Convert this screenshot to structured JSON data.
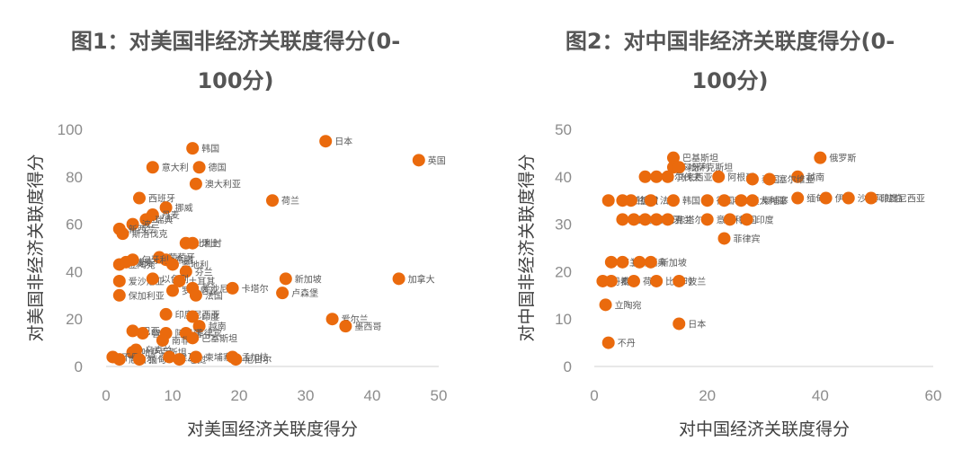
{
  "chart_data": [
    {
      "type": "scatter",
      "title": "图1：对美国非经济关联度得分(0-100分)",
      "title_lines": [
        "图1：对美国非经济关联度得分(0-",
        "100分)"
      ],
      "xlabel": "对美国经济关联度得分",
      "ylabel": "对美国非经济关联度得分",
      "xlim": [
        0,
        50
      ],
      "ylim": [
        0,
        100
      ],
      "xticks": [
        0,
        10,
        20,
        30,
        40,
        50
      ],
      "yticks": [
        0,
        20,
        40,
        60,
        80,
        100
      ],
      "grid": false,
      "color": "#ea6a0d",
      "points": [
        {
          "x": 33,
          "y": 95,
          "label": "日本"
        },
        {
          "x": 47,
          "y": 87,
          "label": "英国"
        },
        {
          "x": 13,
          "y": 92,
          "label": "韩国"
        },
        {
          "x": 7,
          "y": 84,
          "label": "意大利"
        },
        {
          "x": 14,
          "y": 84,
          "label": "德国"
        },
        {
          "x": 13.5,
          "y": 77,
          "label": "澳大利亚"
        },
        {
          "x": 25,
          "y": 70,
          "label": "荷兰"
        },
        {
          "x": 5,
          "y": 71,
          "label": "西班牙"
        },
        {
          "x": 9,
          "y": 67,
          "label": "挪威"
        },
        {
          "x": 7,
          "y": 64,
          "label": "丹麦"
        },
        {
          "x": 6,
          "y": 62,
          "label": "瑞典"
        },
        {
          "x": 4,
          "y": 60,
          "label": "波兰"
        },
        {
          "x": 2,
          "y": 58,
          "label": "新西兰"
        },
        {
          "x": 2.5,
          "y": 56,
          "label": "斯洛伐克"
        },
        {
          "x": 12,
          "y": 52,
          "label": "比利时"
        },
        {
          "x": 13,
          "y": 52,
          "label": "瑞士"
        },
        {
          "x": 8,
          "y": 46,
          "label": "葡萄牙"
        },
        {
          "x": 9,
          "y": 45,
          "label": "希腊"
        },
        {
          "x": 2,
          "y": 43,
          "label": "立陶宛"
        },
        {
          "x": 3,
          "y": 44,
          "label": "捷克"
        },
        {
          "x": 4,
          "y": 45,
          "label": "匈牙利"
        },
        {
          "x": 10,
          "y": 43,
          "label": "奥地利"
        },
        {
          "x": 12,
          "y": 40,
          "label": "芬兰"
        },
        {
          "x": 2,
          "y": 36,
          "label": "爱沙尼亚"
        },
        {
          "x": 7,
          "y": 37,
          "label": "以色列"
        },
        {
          "x": 11,
          "y": 36,
          "label": "土耳其"
        },
        {
          "x": 2,
          "y": 30,
          "label": "保加利亚"
        },
        {
          "x": 10,
          "y": 32,
          "label": "罗马尼亚"
        },
        {
          "x": 13,
          "y": 33,
          "label": "爱沙尼亚"
        },
        {
          "x": 19,
          "y": 33,
          "label": "卡塔尔"
        },
        {
          "x": 13.5,
          "y": 30,
          "label": "法国"
        },
        {
          "x": 27,
          "y": 37,
          "label": "新加坡"
        },
        {
          "x": 44,
          "y": 37,
          "label": "加拿大"
        },
        {
          "x": 26.5,
          "y": 31,
          "label": "卢森堡"
        },
        {
          "x": 9,
          "y": 22,
          "label": "印度尼西亚"
        },
        {
          "x": 13,
          "y": 21,
          "label": "印度"
        },
        {
          "x": 14,
          "y": 17,
          "label": "越南"
        },
        {
          "x": 34,
          "y": 20,
          "label": "爱尔兰"
        },
        {
          "x": 36,
          "y": 17,
          "label": "墨西哥"
        },
        {
          "x": 4,
          "y": 15,
          "label": "巴西"
        },
        {
          "x": 5.5,
          "y": 14,
          "label": "智利"
        },
        {
          "x": 9,
          "y": 14,
          "label": "阿根廷"
        },
        {
          "x": 12,
          "y": 14,
          "label": "菲律宾"
        },
        {
          "x": 8.5,
          "y": 11,
          "label": "南非"
        },
        {
          "x": 13,
          "y": 12,
          "label": "巴基斯坦"
        },
        {
          "x": 4,
          "y": 6,
          "label": "哈萨克斯坦"
        },
        {
          "x": 4.5,
          "y": 7,
          "label": "乌克兰"
        },
        {
          "x": 1,
          "y": 4,
          "label": "不丹"
        },
        {
          "x": 2,
          "y": 3,
          "label": "尼泊尔"
        },
        {
          "x": 5,
          "y": 3,
          "label": "缅甸"
        },
        {
          "x": 9.5,
          "y": 4,
          "label": "埃及"
        },
        {
          "x": 11,
          "y": 3,
          "label": "老挝"
        },
        {
          "x": 13.5,
          "y": 4,
          "label": "柬埔寨"
        },
        {
          "x": 19,
          "y": 4,
          "label": "孟加拉"
        },
        {
          "x": 19.5,
          "y": 3,
          "label": "尼日尔"
        }
      ]
    },
    {
      "type": "scatter",
      "title": "图2：对中国非经济关联度得分(0-100分)",
      "title_lines": [
        "图2：对中国非经济关联度得分(0-",
        "100分)"
      ],
      "xlabel": "对中国经济关联度得分",
      "ylabel": "对中国非经济关联度得分",
      "xlim": [
        0,
        60
      ],
      "ylim": [
        0,
        50
      ],
      "xticks": [
        0,
        20,
        40,
        60
      ],
      "yticks": [
        0,
        10,
        20,
        30,
        40,
        50
      ],
      "grid": false,
      "color": "#ea6a0d",
      "points": [
        {
          "x": 40,
          "y": 44,
          "label": "俄罗斯"
        },
        {
          "x": 14,
          "y": 44,
          "label": "巴基斯坦"
        },
        {
          "x": 14,
          "y": 42,
          "label": "匈牙利"
        },
        {
          "x": 15,
          "y": 42,
          "label": "哈萨克斯坦"
        },
        {
          "x": 36,
          "y": 40,
          "label": "越南"
        },
        {
          "x": 9,
          "y": 40,
          "label": "泰国"
        },
        {
          "x": 11,
          "y": 40,
          "label": "马尔代夫"
        },
        {
          "x": 13,
          "y": 40,
          "label": "马来西亚"
        },
        {
          "x": 22,
          "y": 40,
          "label": "阿根廷"
        },
        {
          "x": 28,
          "y": 39.5,
          "label": "泰国"
        },
        {
          "x": 31,
          "y": 39.5,
          "label": "塞尔维亚"
        },
        {
          "x": 2.5,
          "y": 35,
          "label": "新西兰"
        },
        {
          "x": 5,
          "y": 35,
          "label": "新加坡"
        },
        {
          "x": 6.5,
          "y": 35,
          "label": "德国"
        },
        {
          "x": 10,
          "y": 35,
          "label": "法国"
        },
        {
          "x": 14,
          "y": 35,
          "label": "韩国"
        },
        {
          "x": 20,
          "y": 35,
          "label": "德国"
        },
        {
          "x": 23,
          "y": 35,
          "label": "老挝"
        },
        {
          "x": 26,
          "y": 35,
          "label": "澳大利亚"
        },
        {
          "x": 28,
          "y": 35,
          "label": "柬埔寨"
        },
        {
          "x": 36,
          "y": 35.5,
          "label": "缅甸"
        },
        {
          "x": 41,
          "y": 35.5,
          "label": "伊朗"
        },
        {
          "x": 45,
          "y": 35.5,
          "label": "沙特阿拉伯"
        },
        {
          "x": 49,
          "y": 35.5,
          "label": "印度尼西亚"
        },
        {
          "x": 5,
          "y": 31,
          "label": "瑞士"
        },
        {
          "x": 7,
          "y": 31,
          "label": "英国"
        },
        {
          "x": 9,
          "y": 31,
          "label": "西班牙"
        },
        {
          "x": 11,
          "y": 31,
          "label": "乌克兰"
        },
        {
          "x": 13,
          "y": 31,
          "label": "卡塔尔"
        },
        {
          "x": 20,
          "y": 31,
          "label": "意大利"
        },
        {
          "x": 24,
          "y": 31,
          "label": "韩国"
        },
        {
          "x": 27,
          "y": 31,
          "label": "印度"
        },
        {
          "x": 23,
          "y": 27,
          "label": "菲律宾"
        },
        {
          "x": 3,
          "y": 22,
          "label": "芬兰"
        },
        {
          "x": 5,
          "y": 22,
          "label": "挪威"
        },
        {
          "x": 8,
          "y": 22,
          "label": "瑞典"
        },
        {
          "x": 10,
          "y": 22,
          "label": "新加坡"
        },
        {
          "x": 1.5,
          "y": 18,
          "label": "丹麦"
        },
        {
          "x": 3,
          "y": 18,
          "label": "希腊"
        },
        {
          "x": 7,
          "y": 18,
          "label": "荷兰"
        },
        {
          "x": 11,
          "y": 18,
          "label": "比利时"
        },
        {
          "x": 15,
          "y": 18,
          "label": "波兰"
        },
        {
          "x": 2,
          "y": 13,
          "label": "立陶宛"
        },
        {
          "x": 15,
          "y": 9,
          "label": "日本"
        },
        {
          "x": 2.5,
          "y": 5,
          "label": "不丹"
        }
      ]
    }
  ]
}
